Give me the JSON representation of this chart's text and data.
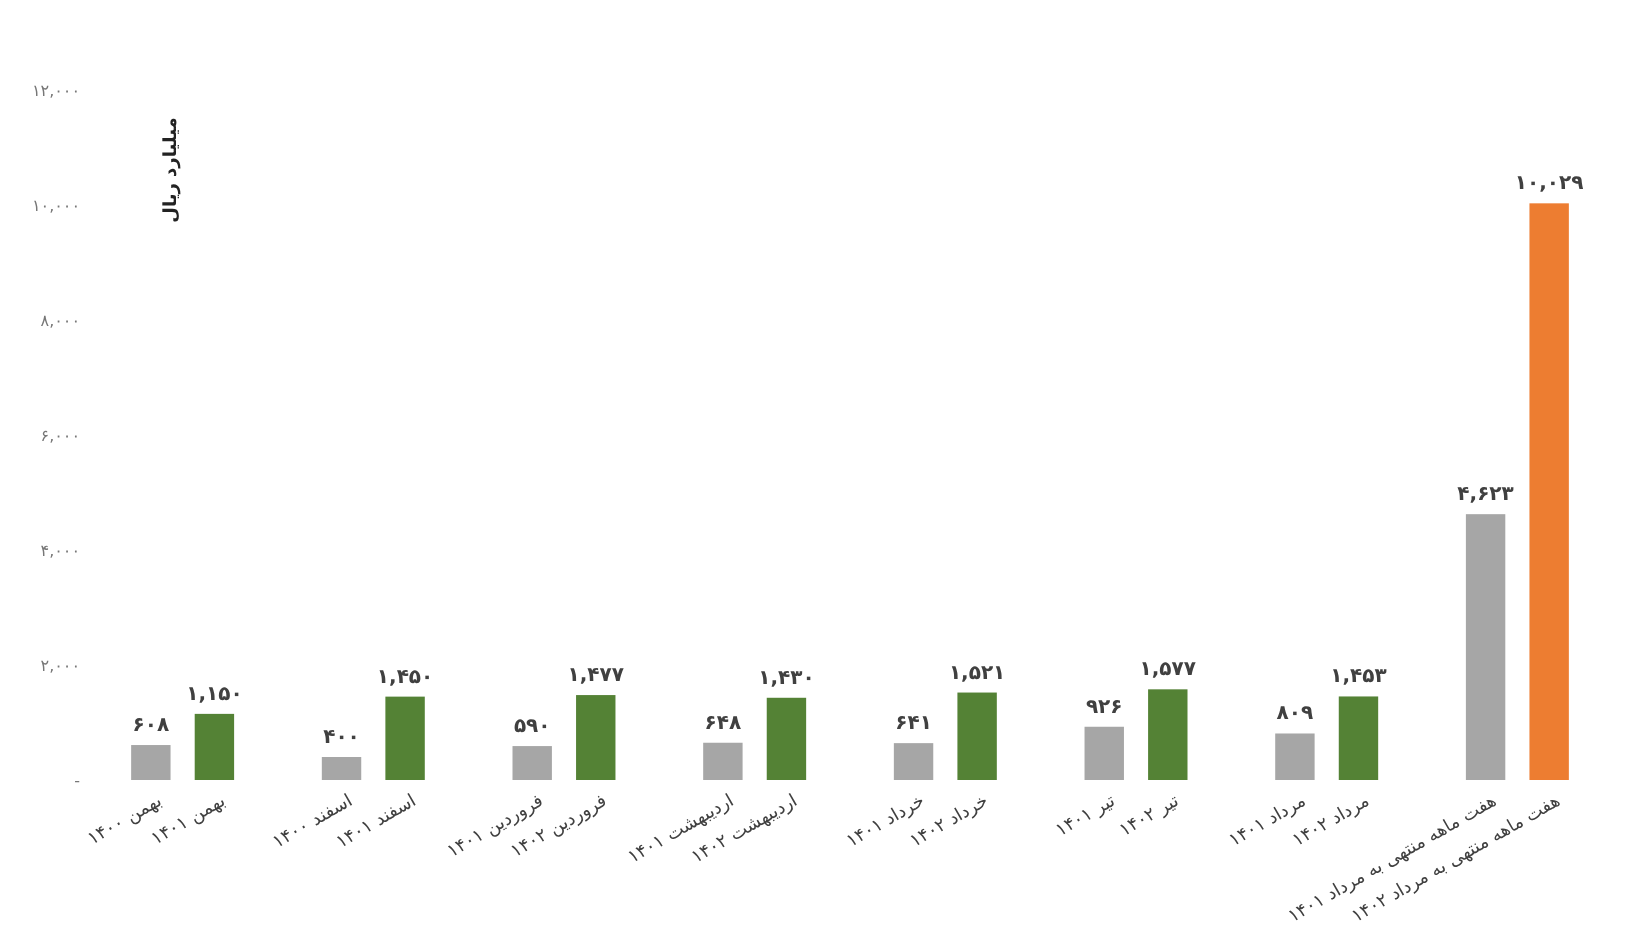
{
  "chart_data": {
    "type": "bar",
    "ylabel": "میلیارد ریال",
    "categories": [
      "بهمن ۱۴۰۰",
      "بهمن ۱۴۰۱",
      null,
      "اسفند ۱۴۰۰",
      "اسفند ۱۴۰۱",
      null,
      "فروردین ۱۴۰۱",
      "فروردین ۱۴۰۲",
      null,
      "اردیبهشت ۱۴۰۱",
      "اردیبهشت ۱۴۰۲",
      null,
      "خرداد ۱۴۰۱",
      "خرداد ۱۴۰۲",
      null,
      "تیر ۱۴۰۱",
      "تیر ۱۴۰۲",
      null,
      "مرداد ۱۴۰۱",
      "مرداد ۱۴۰۲",
      null,
      "هفت ماهه منتهی به مرداد ۱۴۰۱",
      "هفت ماهه منتهی به مرداد ۱۴۰۲"
    ],
    "values": [
      608,
      1150,
      null,
      400,
      1450,
      null,
      590,
      1477,
      null,
      648,
      1430,
      null,
      641,
      1521,
      null,
      926,
      1577,
      null,
      809,
      1453,
      null,
      4623,
      10029
    ],
    "value_labels": [
      "۶۰۸",
      "۱,۱۵۰",
      null,
      "۴۰۰",
      "۱,۴۵۰",
      null,
      "۵۹۰",
      "۱,۴۷۷",
      null,
      "۶۴۸",
      "۱,۴۳۰",
      null,
      "۶۴۱",
      "۱,۵۲۱",
      null,
      "۹۲۶",
      "۱,۵۷۷",
      null,
      "۸۰۹",
      "۱,۴۵۳",
      null,
      "۴,۶۲۳",
      "۱۰,۰۲۹"
    ],
    "colors": [
      "#a6a6a6",
      "#548235",
      null,
      "#a6a6a6",
      "#548235",
      null,
      "#a6a6a6",
      "#548235",
      null,
      "#a6a6a6",
      "#548235",
      null,
      "#a6a6a6",
      "#548235",
      null,
      "#a6a6a6",
      "#548235",
      null,
      "#a6a6a6",
      "#548235",
      null,
      "#a6a6a6",
      "#ed7d31"
    ],
    "ylim": [
      0,
      12000
    ],
    "yticks": [
      {
        "value": 0,
        "label": "-"
      },
      {
        "value": 2000,
        "label": "۲,۰۰۰"
      },
      {
        "value": 4000,
        "label": "۴,۰۰۰"
      },
      {
        "value": 6000,
        "label": "۶,۰۰۰"
      },
      {
        "value": 8000,
        "label": "۸,۰۰۰"
      },
      {
        "value": 10000,
        "label": "۱۰,۰۰۰"
      },
      {
        "value": 12000,
        "label": "۱۲,۰۰۰"
      }
    ]
  }
}
